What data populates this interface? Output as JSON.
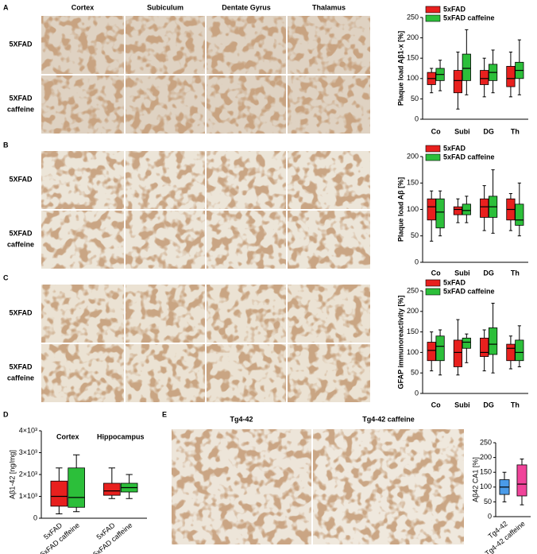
{
  "figure": {
    "A": {
      "label": "A",
      "columns": [
        "Cortex",
        "Subiculum",
        "Dentate Gyrus",
        "Thalamus"
      ],
      "rows": [
        "5XFAD",
        "5XFAD\ncaffeine"
      ]
    },
    "B": {
      "label": "B",
      "rows": [
        "5XFAD",
        "5XFAD\ncaffeine"
      ]
    },
    "C": {
      "label": "C",
      "rows": [
        "5XFAD",
        "5XFAD\ncaffeine"
      ]
    },
    "D": {
      "label": "D"
    },
    "E": {
      "label": "E",
      "columns": [
        "Tg4-42",
        "Tg4-42 caffeine"
      ]
    }
  },
  "chart_data": [
    {
      "type": "box",
      "ylabel": "Plaque load Aβ1-x [%]",
      "categories": [
        "Co",
        "Subi",
        "DG",
        "Th"
      ],
      "ylim": [
        0,
        250
      ],
      "yticks": [
        0,
        50,
        100,
        150,
        200,
        250
      ],
      "legend": "upper left",
      "series": [
        {
          "name": "5xFAD",
          "color": "#e8201e",
          "values": [
            {
              "min": 65,
              "q1": 85,
              "median": 100,
              "q3": 115,
              "max": 125
            },
            {
              "min": 25,
              "q1": 65,
              "median": 95,
              "q3": 120,
              "max": 165
            },
            {
              "min": 55,
              "q1": 85,
              "median": 100,
              "q3": 120,
              "max": 150
            },
            {
              "min": 55,
              "q1": 80,
              "median": 100,
              "q3": 130,
              "max": 165
            }
          ]
        },
        {
          "name": "5xFAD caffeine",
          "color": "#2cbf3a",
          "values": [
            {
              "min": 70,
              "q1": 95,
              "median": 110,
              "q3": 125,
              "max": 145
            },
            {
              "min": 60,
              "q1": 95,
              "median": 125,
              "q3": 160,
              "max": 220
            },
            {
              "min": 65,
              "q1": 95,
              "median": 115,
              "q3": 135,
              "max": 170
            },
            {
              "min": 60,
              "q1": 100,
              "median": 120,
              "q3": 140,
              "max": 195
            }
          ]
        }
      ]
    },
    {
      "type": "box",
      "ylabel": "Plaque load Aβ [%]",
      "categories": [
        "Co",
        "Subi",
        "DG",
        "Th"
      ],
      "ylim": [
        0,
        200
      ],
      "yticks": [
        0,
        50,
        100,
        150,
        200
      ],
      "legend": "upper left",
      "series": [
        {
          "name": "5xFAD",
          "color": "#e8201e",
          "values": [
            {
              "min": 40,
              "q1": 80,
              "median": 105,
              "q3": 120,
              "max": 135
            },
            {
              "min": 75,
              "q1": 90,
              "median": 100,
              "q3": 105,
              "max": 120
            },
            {
              "min": 60,
              "q1": 85,
              "median": 105,
              "q3": 120,
              "max": 145
            },
            {
              "min": 60,
              "q1": 80,
              "median": 100,
              "q3": 120,
              "max": 130
            }
          ]
        },
        {
          "name": "5xFAD caffeine",
          "color": "#2cbf3a",
          "values": [
            {
              "min": 50,
              "q1": 65,
              "median": 95,
              "q3": 120,
              "max": 135
            },
            {
              "min": 75,
              "q1": 90,
              "median": 98,
              "q3": 110,
              "max": 125
            },
            {
              "min": 55,
              "q1": 85,
              "median": 105,
              "q3": 125,
              "max": 175
            },
            {
              "min": 50,
              "q1": 70,
              "median": 80,
              "q3": 110,
              "max": 150
            }
          ]
        }
      ]
    },
    {
      "type": "box",
      "ylabel": "GFAP immunoreactivity [%]",
      "categories": [
        "Co",
        "Subi",
        "DG",
        "Th"
      ],
      "ylim": [
        0,
        250
      ],
      "yticks": [
        0,
        50,
        100,
        150,
        200,
        250
      ],
      "legend": "upper left",
      "series": [
        {
          "name": "5xFAD",
          "color": "#e8201e",
          "values": [
            {
              "min": 55,
              "q1": 80,
              "median": 105,
              "q3": 125,
              "max": 150
            },
            {
              "min": 45,
              "q1": 65,
              "median": 100,
              "q3": 130,
              "max": 180
            },
            {
              "min": 55,
              "q1": 90,
              "median": 100,
              "q3": 135,
              "max": 155
            },
            {
              "min": 60,
              "q1": 80,
              "median": 110,
              "q3": 120,
              "max": 140
            }
          ]
        },
        {
          "name": "5xFAD caffeine",
          "color": "#2cbf3a",
          "values": [
            {
              "min": 45,
              "q1": 80,
              "median": 115,
              "q3": 140,
              "max": 155
            },
            {
              "min": 75,
              "q1": 110,
              "median": 125,
              "q3": 135,
              "max": 145
            },
            {
              "min": 50,
              "q1": 95,
              "median": 120,
              "q3": 160,
              "max": 220
            },
            {
              "min": 65,
              "q1": 80,
              "median": 100,
              "q3": 130,
              "max": 165
            }
          ]
        }
      ]
    },
    {
      "type": "box",
      "ylabel": "Aβ1-42 [ng/mg]",
      "categories": [
        "Cortex",
        "Hippocampus"
      ],
      "ylim": [
        0,
        4000
      ],
      "yticks": [
        0,
        {
          "value": 1000,
          "label": "1×10³"
        },
        {
          "value": 2000,
          "label": "2×10³"
        },
        {
          "value": 3000,
          "label": "3×10³"
        },
        {
          "value": 4000,
          "label": "4×10³"
        }
      ],
      "series": [
        {
          "name": "5xFAD",
          "color": "#e8201e",
          "values": [
            {
              "min": 200,
              "q1": 550,
              "median": 1000,
              "q3": 1700,
              "max": 2300
            },
            {
              "min": 900,
              "q1": 1050,
              "median": 1250,
              "q3": 1600,
              "max": 2300
            }
          ]
        },
        {
          "name": "5xFAD caffeine",
          "color": "#2cbf3a",
          "values": [
            {
              "min": 300,
              "q1": 500,
              "median": 950,
              "q3": 2300,
              "max": 2900
            },
            {
              "min": 900,
              "q1": 1200,
              "median": 1400,
              "q3": 1600,
              "max": 2000
            }
          ]
        }
      ]
    },
    {
      "type": "box",
      "ylabel": "Aβ42 CA1 [%]",
      "categories": [
        "Tg4-42",
        "Tg4-42 caffeine"
      ],
      "ylim": [
        0,
        250
      ],
      "yticks": [
        0,
        50,
        100,
        150,
        200,
        250
      ],
      "colors": [
        "#4a9be8",
        "#f0449a"
      ],
      "values": [
        {
          "min": 50,
          "q1": 75,
          "median": 100,
          "q3": 125,
          "max": 150
        },
        {
          "min": 40,
          "q1": 70,
          "median": 110,
          "q3": 175,
          "max": 195
        }
      ]
    }
  ]
}
